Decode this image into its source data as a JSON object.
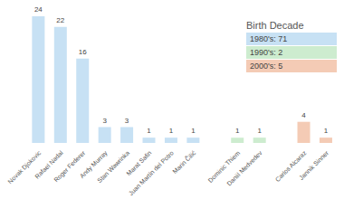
{
  "chart_data": {
    "type": "bar",
    "stacked": true,
    "data_labels": true,
    "tick_labels": "x",
    "grid": false,
    "legend": "top-right",
    "legend_title": "Birth Decade",
    "categories": [
      "Novak Djokovic",
      "Rafael Nadal",
      "Roger Federer",
      "Andy Murray",
      "Stan Wawrinka",
      "Marat Safin",
      "Juan Martín del Potro",
      "Marin Čilić",
      null,
      "Dominic Thiem",
      "Daniil Medvedev",
      null,
      "Carlos Alcaraz",
      "Jannik Sinner"
    ],
    "series": [
      {
        "name": "1980's: 71",
        "color": "#c7e1f4",
        "values": [
          24,
          22,
          16,
          3,
          3,
          1,
          1,
          1,
          null,
          null,
          null,
          null,
          null,
          null
        ]
      },
      {
        "name": "1990's: 2",
        "color": "#cdeccf",
        "values": [
          null,
          null,
          null,
          null,
          null,
          null,
          null,
          null,
          null,
          1,
          1,
          null,
          null,
          null
        ]
      },
      {
        "name": "2000's: 5",
        "color": "#f4cbb5",
        "values": [
          null,
          null,
          null,
          null,
          null,
          null,
          null,
          null,
          null,
          null,
          null,
          null,
          4,
          1
        ]
      }
    ],
    "ylim": [
      0,
      24
    ]
  }
}
